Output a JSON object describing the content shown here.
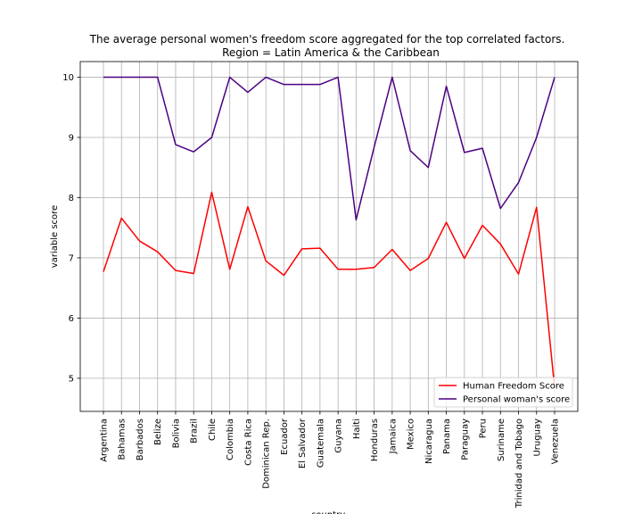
{
  "chart_data": {
    "type": "line",
    "title": "The average personal women's freedom score aggregated for the top correlated factors.",
    "subtitle": "Region = Latin America & the Caribbean",
    "xlabel": "country",
    "ylabel": "variable score",
    "ylim": [
      4.45,
      10.26
    ],
    "yticks": [
      5,
      6,
      7,
      8,
      9,
      10
    ],
    "grid": true,
    "legend_position": "lower-right",
    "categories": [
      "Argentina",
      "Bahamas",
      "Barbados",
      "Belize",
      "Bolivia",
      "Brazil",
      "Chile",
      "Colombia",
      "Costa Rica",
      "Dominican Rep.",
      "Ecuador",
      "El Salvador",
      "Guatemala",
      "Guyana",
      "Haiti",
      "Honduras",
      "Jamaica",
      "Mexico",
      "Nicaragua",
      "Panama",
      "Paraguay",
      "Peru",
      "Suriname",
      "Trinidad and Tobago",
      "Uruguay",
      "Venezuela"
    ],
    "series": [
      {
        "name": "Human Freedom Score",
        "color": "#ff0000",
        "values": [
          6.77,
          7.66,
          7.28,
          7.1,
          6.79,
          6.74,
          8.09,
          6.81,
          7.85,
          6.95,
          6.71,
          7.15,
          7.16,
          6.81,
          6.81,
          6.84,
          7.14,
          6.79,
          6.99,
          7.59,
          6.99,
          7.54,
          7.23,
          6.73,
          7.84,
          4.84
        ]
      },
      {
        "name": "Personal woman's score",
        "color": "#4b0082",
        "values": [
          10.0,
          10.0,
          10.0,
          10.0,
          8.88,
          8.76,
          9.0,
          10.0,
          9.75,
          10.0,
          9.88,
          9.88,
          9.88,
          10.0,
          7.63,
          8.84,
          10.0,
          8.78,
          8.5,
          9.85,
          8.75,
          8.82,
          7.82,
          8.25,
          9.0,
          10.0
        ]
      }
    ]
  }
}
